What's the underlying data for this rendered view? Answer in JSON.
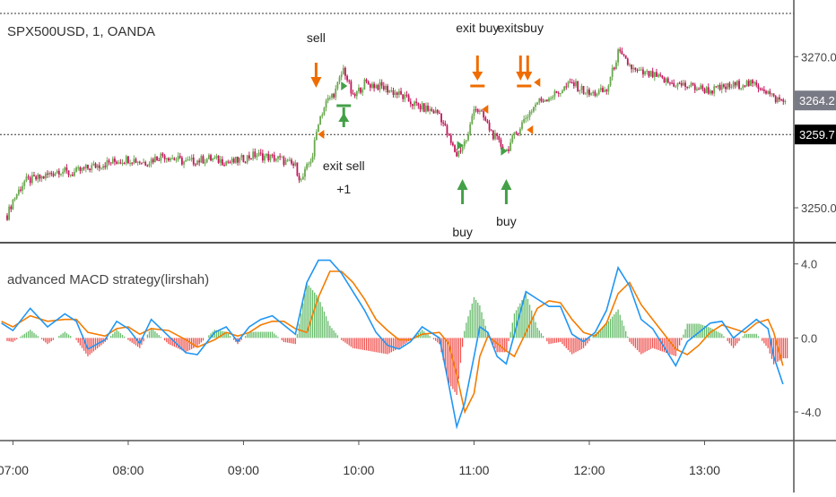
{
  "chart_data": [
    {
      "type": "candlestick",
      "symbol_title": "SPX500USD, 1, OANDA",
      "y_axis_labels": [
        "3270.0",
        "3250.0"
      ],
      "y_ticks": [
        3270,
        3250
      ],
      "ylim": [
        3245.5,
        3277.5
      ],
      "price_badges": [
        {
          "value": "3264.2",
          "color": "#787b86"
        },
        {
          "value": "3259.7",
          "color": "#000000"
        }
      ],
      "candle_colors": {
        "up": "#26a69a",
        "down": "#ef5350",
        "up_display": "#6aa84f",
        "down_display": "#c2185b"
      },
      "price_path": [
        [
          6.95,
          3249.0
        ],
        [
          7.0,
          3251.0
        ],
        [
          7.1,
          3253.5
        ],
        [
          7.25,
          3254.0
        ],
        [
          7.4,
          3255.0
        ],
        [
          7.5,
          3254.5
        ],
        [
          7.7,
          3255.5
        ],
        [
          7.85,
          3256.0
        ],
        [
          8.0,
          3256.5
        ],
        [
          8.15,
          3256.0
        ],
        [
          8.3,
          3257.0
        ],
        [
          8.5,
          3256.0
        ],
        [
          8.7,
          3256.5
        ],
        [
          8.9,
          3256.0
        ],
        [
          9.1,
          3257.0
        ],
        [
          9.3,
          3256.5
        ],
        [
          9.45,
          3255.5
        ],
        [
          9.5,
          3253.5
        ],
        [
          9.6,
          3257.0
        ],
        [
          9.65,
          3261.5
        ],
        [
          9.72,
          3264.0
        ],
        [
          9.8,
          3265.5
        ],
        [
          9.87,
          3268.5
        ],
        [
          9.95,
          3264.5
        ],
        [
          10.05,
          3266.5
        ],
        [
          10.2,
          3266.0
        ],
        [
          10.35,
          3265.0
        ],
        [
          10.5,
          3263.5
        ],
        [
          10.6,
          3263.0
        ],
        [
          10.7,
          3262.5
        ],
        [
          10.8,
          3258.5
        ],
        [
          10.85,
          3257.0
        ],
        [
          10.95,
          3259.5
        ],
        [
          11.0,
          3263.5
        ],
        [
          11.08,
          3262.0
        ],
        [
          11.15,
          3260.0
        ],
        [
          11.22,
          3258.5
        ],
        [
          11.28,
          3257.5
        ],
        [
          11.35,
          3259.5
        ],
        [
          11.45,
          3262.0
        ],
        [
          11.55,
          3264.0
        ],
        [
          11.7,
          3265.0
        ],
        [
          11.85,
          3266.5
        ],
        [
          12.0,
          3265.0
        ],
        [
          12.15,
          3265.5
        ],
        [
          12.25,
          3270.5
        ],
        [
          12.4,
          3268.0
        ],
        [
          12.55,
          3267.5
        ],
        [
          12.7,
          3266.5
        ],
        [
          12.9,
          3266.0
        ],
        [
          13.05,
          3265.5
        ],
        [
          13.2,
          3266.0
        ],
        [
          13.35,
          3266.5
        ],
        [
          13.5,
          3266.0
        ],
        [
          13.6,
          3264.5
        ],
        [
          13.7,
          3264.0
        ]
      ],
      "signals": [
        {
          "label": "sell",
          "type": "sell",
          "time": 9.63
        },
        {
          "label": "exit sell",
          "extra": "+1",
          "type": "exit_sell",
          "time": 9.87
        },
        {
          "label": "buy",
          "type": "buy",
          "time": 10.9
        },
        {
          "label": "exit buy",
          "type": "exit_buy",
          "time": 11.03
        },
        {
          "label": "buy",
          "type": "buy",
          "time": 11.28
        },
        {
          "label": "exitsbuy",
          "type": "exit_buy",
          "time": 11.45
        }
      ],
      "reference_lines": [
        3259.7
      ],
      "x_ticks": [
        "07:00",
        "08:00",
        "09:00",
        "10:00",
        "11:00",
        "12:00",
        "13:00"
      ]
    },
    {
      "type": "line+histogram",
      "title": "advanced MACD strategy(lirshah)",
      "y_axis_labels": [
        "4.0",
        "0.0",
        "-4.0"
      ],
      "y_ticks": [
        4.0,
        0.0,
        -4.0
      ],
      "ylim": [
        -5.5,
        5.1
      ],
      "series": [
        {
          "color": "#2196f3",
          "values": [
            [
              6.9,
              0.8
            ],
            [
              7.0,
              0.4
            ],
            [
              7.15,
              1.6
            ],
            [
              7.3,
              0.6
            ],
            [
              7.45,
              1.3
            ],
            [
              7.55,
              0.9
            ],
            [
              7.65,
              -0.6
            ],
            [
              7.8,
              -0.1
            ],
            [
              7.9,
              0.9
            ],
            [
              8.0,
              0.5
            ],
            [
              8.1,
              -0.3
            ],
            [
              8.2,
              1.0
            ],
            [
              8.35,
              0.1
            ],
            [
              8.5,
              -0.8
            ],
            [
              8.6,
              -0.9
            ],
            [
              8.75,
              0.3
            ],
            [
              8.85,
              0.6
            ],
            [
              8.95,
              -0.2
            ],
            [
              9.05,
              0.6
            ],
            [
              9.15,
              1.0
            ],
            [
              9.25,
              1.2
            ],
            [
              9.35,
              0.7
            ],
            [
              9.45,
              0.2
            ],
            [
              9.55,
              3.0
            ],
            [
              9.65,
              4.2
            ],
            [
              9.75,
              4.2
            ],
            [
              9.85,
              3.5
            ],
            [
              9.95,
              2.5
            ],
            [
              10.05,
              1.5
            ],
            [
              10.15,
              0.3
            ],
            [
              10.25,
              -0.4
            ],
            [
              10.35,
              -0.6
            ],
            [
              10.45,
              -0.2
            ],
            [
              10.55,
              0.6
            ],
            [
              10.7,
              0.0
            ],
            [
              10.78,
              -2.5
            ],
            [
              10.85,
              -4.8
            ],
            [
              10.92,
              -3.5
            ],
            [
              11.0,
              -1.0
            ],
            [
              11.05,
              0.6
            ],
            [
              11.12,
              0.3
            ],
            [
              11.2,
              -1.0
            ],
            [
              11.28,
              -1.4
            ],
            [
              11.35,
              0.2
            ],
            [
              11.45,
              2.5
            ],
            [
              11.55,
              2.1
            ],
            [
              11.65,
              1.7
            ],
            [
              11.75,
              1.7
            ],
            [
              11.85,
              0.2
            ],
            [
              11.95,
              -0.2
            ],
            [
              12.05,
              0.3
            ],
            [
              12.15,
              1.5
            ],
            [
              12.25,
              3.8
            ],
            [
              12.35,
              2.8
            ],
            [
              12.45,
              1.0
            ],
            [
              12.55,
              0.5
            ],
            [
              12.65,
              -0.5
            ],
            [
              12.75,
              -1.5
            ],
            [
              12.85,
              -0.2
            ],
            [
              12.95,
              0.3
            ],
            [
              13.05,
              0.8
            ],
            [
              13.15,
              0.9
            ],
            [
              13.25,
              0.0
            ],
            [
              13.35,
              0.5
            ],
            [
              13.45,
              1.0
            ],
            [
              13.55,
              0.5
            ],
            [
              13.6,
              -1.0
            ],
            [
              13.68,
              -2.5
            ]
          ]
        },
        {
          "color": "#f57c00",
          "values": [
            [
              6.9,
              0.9
            ],
            [
              7.0,
              0.6
            ],
            [
              7.15,
              1.2
            ],
            [
              7.3,
              0.9
            ],
            [
              7.45,
              1.0
            ],
            [
              7.55,
              1.0
            ],
            [
              7.65,
              0.3
            ],
            [
              7.8,
              0.1
            ],
            [
              7.9,
              0.5
            ],
            [
              8.0,
              0.6
            ],
            [
              8.1,
              0.2
            ],
            [
              8.2,
              0.5
            ],
            [
              8.35,
              0.4
            ],
            [
              8.5,
              -0.1
            ],
            [
              8.6,
              -0.5
            ],
            [
              8.75,
              -0.1
            ],
            [
              8.85,
              0.3
            ],
            [
              8.95,
              0.1
            ],
            [
              9.05,
              0.3
            ],
            [
              9.15,
              0.7
            ],
            [
              9.25,
              0.9
            ],
            [
              9.35,
              0.9
            ],
            [
              9.45,
              0.5
            ],
            [
              9.55,
              0.3
            ],
            [
              9.65,
              2.2
            ],
            [
              9.75,
              3.6
            ],
            [
              9.85,
              3.6
            ],
            [
              9.95,
              3.0
            ],
            [
              10.05,
              2.1
            ],
            [
              10.15,
              1.0
            ],
            [
              10.25,
              0.4
            ],
            [
              10.35,
              -0.1
            ],
            [
              10.45,
              -0.1
            ],
            [
              10.55,
              0.2
            ],
            [
              10.7,
              0.3
            ],
            [
              10.78,
              -0.3
            ],
            [
              10.85,
              -2.0
            ],
            [
              10.92,
              -4.0
            ],
            [
              11.0,
              -3.0
            ],
            [
              11.05,
              -1.0
            ],
            [
              11.12,
              0.1
            ],
            [
              11.2,
              -0.3
            ],
            [
              11.28,
              -0.7
            ],
            [
              11.35,
              -1.0
            ],
            [
              11.45,
              0.3
            ],
            [
              11.55,
              1.6
            ],
            [
              11.65,
              2.0
            ],
            [
              11.75,
              1.9
            ],
            [
              11.85,
              1.0
            ],
            [
              11.95,
              0.3
            ],
            [
              12.05,
              0.1
            ],
            [
              12.15,
              0.8
            ],
            [
              12.25,
              2.4
            ],
            [
              12.35,
              3.0
            ],
            [
              12.45,
              1.8
            ],
            [
              12.55,
              1.0
            ],
            [
              12.65,
              0.2
            ],
            [
              12.75,
              -0.6
            ],
            [
              12.85,
              -0.9
            ],
            [
              12.95,
              -0.4
            ],
            [
              13.05,
              0.3
            ],
            [
              13.15,
              0.7
            ],
            [
              13.25,
              0.5
            ],
            [
              13.35,
              0.3
            ],
            [
              13.45,
              0.8
            ],
            [
              13.55,
              1.0
            ],
            [
              13.6,
              0.3
            ],
            [
              13.68,
              -1.5
            ]
          ]
        }
      ],
      "histogram_colors": {
        "positive": "#66bb6a",
        "negative": "#ef5350"
      }
    }
  ]
}
